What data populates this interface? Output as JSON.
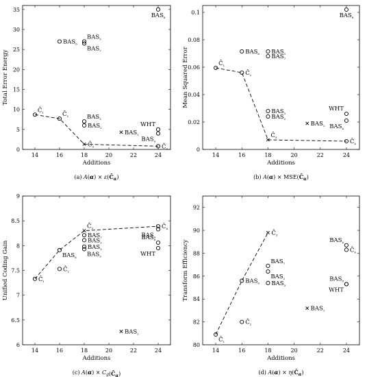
{
  "chart_data": [
    {
      "type": "scatter",
      "panel": "a",
      "xlabel": "Additions",
      "ylabel": "Total Error Energy",
      "caption": "(a) A(α) × ε(Ĉ_α)",
      "xlim": [
        13,
        25
      ],
      "ylim": [
        0,
        36
      ],
      "xticks": [
        14,
        16,
        18,
        20,
        22,
        24
      ],
      "yticks": [
        0,
        5,
        10,
        15,
        20,
        25,
        30,
        35
      ],
      "tick_labels_x": [
        "14",
        "16",
        "18",
        "20",
        "22",
        "24"
      ],
      "tick_labels_y": [
        "0",
        "5",
        "10",
        "15",
        "20",
        "25",
        "30",
        "35"
      ],
      "points": [
        {
          "label": "Ĉ₁",
          "x": 14,
          "y": 8.7,
          "marker": "o",
          "pos": "ne"
        },
        {
          "label": "Ĉ₂",
          "x": 16,
          "y": 7.7,
          "marker": "o",
          "pos": "ne"
        },
        {
          "label": "Ĉ₃",
          "x": 18,
          "y": 1.3,
          "marker": "x",
          "pos": "e"
        },
        {
          "label": "Ĉ₄",
          "x": 24,
          "y": 0.8,
          "marker": "o",
          "pos": "e"
        },
        {
          "label": "BAS₃",
          "x": 18,
          "y": 7.0,
          "marker": "o",
          "pos": "ne"
        },
        {
          "label": "BAS₂",
          "x": 18,
          "y": 6.0,
          "marker": "o",
          "pos": "e"
        },
        {
          "label": "BAS₁",
          "x": 21,
          "y": 4.3,
          "marker": "x",
          "pos": "e"
        },
        {
          "label": "WHT",
          "x": 24,
          "y": 5.0,
          "marker": "o",
          "pos": "nw"
        },
        {
          "label": "BAS₄",
          "x": 24,
          "y": 4.0,
          "marker": "o",
          "pos": "sw"
        },
        {
          "label": "BAS₆",
          "x": 16,
          "y": 27.0,
          "marker": "o",
          "pos": "e"
        },
        {
          "label": "BAS₅",
          "x": 18,
          "y": 27.0,
          "marker": "o",
          "pos": "ne"
        },
        {
          "label": "BAS₇",
          "x": 18,
          "y": 26.5,
          "marker": "o",
          "pos": "se"
        },
        {
          "label": "BAS₈",
          "x": 24,
          "y": 35.0,
          "marker": "o",
          "pos": "s"
        }
      ],
      "front": [
        [
          14,
          8.7
        ],
        [
          16,
          7.7
        ],
        [
          18,
          1.3
        ],
        [
          24,
          0.8
        ]
      ]
    },
    {
      "type": "scatter",
      "panel": "b",
      "xlabel": "Additions",
      "ylabel": "Mean Squared Error",
      "caption": "(b) A(α) × MSE(Ĉ_α)",
      "xlim": [
        13,
        25
      ],
      "ylim": [
        0,
        0.105
      ],
      "xticks": [
        14,
        16,
        18,
        20,
        22,
        24
      ],
      "yticks": [
        0,
        0.02,
        0.04,
        0.06,
        0.08,
        0.1
      ],
      "tick_labels_x": [
        "14",
        "16",
        "18",
        "20",
        "22",
        "24"
      ],
      "tick_labels_y": [
        "0",
        "0.02",
        "0.04",
        "0.06",
        "0.08",
        "0.1"
      ],
      "points": [
        {
          "label": "Ĉ₁",
          "x": 14,
          "y": 0.0595,
          "marker": "o",
          "pos": "ne"
        },
        {
          "label": "Ĉ₂",
          "x": 16,
          "y": 0.056,
          "marker": "o",
          "pos": "e"
        },
        {
          "label": "Ĉ₃",
          "x": 18,
          "y": 0.007,
          "marker": "x",
          "pos": "ne"
        },
        {
          "label": "Ĉ₄",
          "x": 24,
          "y": 0.006,
          "marker": "o",
          "pos": "e"
        },
        {
          "label": "BAS₃",
          "x": 18,
          "y": 0.028,
          "marker": "o",
          "pos": "e"
        },
        {
          "label": "BAS₂",
          "x": 18,
          "y": 0.024,
          "marker": "o",
          "pos": "e"
        },
        {
          "label": "BAS₁",
          "x": 21,
          "y": 0.019,
          "marker": "x",
          "pos": "e"
        },
        {
          "label": "WHT",
          "x": 24,
          "y": 0.026,
          "marker": "o",
          "pos": "nw"
        },
        {
          "label": "BAS₄",
          "x": 24,
          "y": 0.021,
          "marker": "o",
          "pos": "sw"
        },
        {
          "label": "BAS₆",
          "x": 16,
          "y": 0.0715,
          "marker": "o",
          "pos": "e"
        },
        {
          "label": "BAS₅",
          "x": 18,
          "y": 0.0715,
          "marker": "o",
          "pos": "e"
        },
        {
          "label": "BAS₇",
          "x": 18,
          "y": 0.068,
          "marker": "o",
          "pos": "e"
        },
        {
          "label": "BAS₈",
          "x": 24,
          "y": 0.102,
          "marker": "o",
          "pos": "s"
        }
      ],
      "front": [
        [
          14,
          0.0595
        ],
        [
          16,
          0.056
        ],
        [
          18,
          0.007
        ],
        [
          24,
          0.006
        ]
      ]
    },
    {
      "type": "scatter",
      "panel": "c",
      "xlabel": "Additions",
      "ylabel": "Unified Coding Gain",
      "caption": "(c) A(α) × C_g(Ĉ_α)",
      "xlim": [
        13,
        25
      ],
      "ylim": [
        6,
        9
      ],
      "xticks": [
        14,
        16,
        18,
        20,
        22,
        24
      ],
      "yticks": [
        6,
        6.5,
        7,
        7.5,
        8,
        8.5,
        9
      ],
      "tick_labels_x": [
        "14",
        "16",
        "18",
        "20",
        "22",
        "24"
      ],
      "tick_labels_y": [
        "6",
        "6.5",
        "7",
        "7.5",
        "8",
        "8.5",
        "9"
      ],
      "points": [
        {
          "label": "Ĉ₁",
          "x": 14,
          "y": 7.33,
          "marker": "o",
          "pos": "e"
        },
        {
          "label": "Ĉ₂",
          "x": 16,
          "y": 7.53,
          "marker": "o",
          "pos": "e"
        },
        {
          "label": "Ĉ₃",
          "x": 18,
          "y": 8.3,
          "marker": "x",
          "pos": "ne"
        },
        {
          "label": "Ĉ₄",
          "x": 24,
          "y": 8.39,
          "marker": "o",
          "pos": "e"
        },
        {
          "label": "BAS₇",
          "x": 18,
          "y": 8.21,
          "marker": "o",
          "pos": "e"
        },
        {
          "label": "BAS₂",
          "x": 18,
          "y": 8.11,
          "marker": "o",
          "pos": "e"
        },
        {
          "label": "BAS₃",
          "x": 18,
          "y": 7.98,
          "marker": "o",
          "pos": "e"
        },
        {
          "label": "BAS₅",
          "x": 18,
          "y": 7.93,
          "marker": "o",
          "pos": "se"
        },
        {
          "label": "BAS₆",
          "x": 16,
          "y": 7.91,
          "marker": "o",
          "pos": "se"
        },
        {
          "label": "BAS₄",
          "x": 24,
          "y": 8.33,
          "marker": "o",
          "pos": "sw"
        },
        {
          "label": "BAS₈",
          "x": 24,
          "y": 8.06,
          "marker": "o",
          "pos": "nw"
        },
        {
          "label": "WHT",
          "x": 24,
          "y": 7.95,
          "marker": "o",
          "pos": "sw"
        },
        {
          "label": "BAS₁",
          "x": 21,
          "y": 6.27,
          "marker": "x",
          "pos": "e"
        }
      ],
      "front": [
        [
          14,
          7.33
        ],
        [
          16,
          7.91
        ],
        [
          18,
          8.3
        ],
        [
          24,
          8.39
        ]
      ]
    },
    {
      "type": "scatter",
      "panel": "d",
      "xlabel": "Additions",
      "ylabel": "Transform Efficiency",
      "caption": "(d) A(α) × η(Ĉ_α)",
      "xlim": [
        13,
        25
      ],
      "ylim": [
        80,
        93
      ],
      "xticks": [
        14,
        16,
        18,
        20,
        22,
        24
      ],
      "yticks": [
        80,
        82,
        84,
        86,
        88,
        90,
        92
      ],
      "tick_labels_x": [
        "14",
        "16",
        "18",
        "20",
        "22",
        "24"
      ],
      "tick_labels_y": [
        "80",
        "82",
        "84",
        "86",
        "88",
        "90",
        "92"
      ],
      "points": [
        {
          "label": "Ĉ₁",
          "x": 14,
          "y": 80.9,
          "marker": "o",
          "pos": "se"
        },
        {
          "label": "Ĉ₂",
          "x": 16,
          "y": 82.0,
          "marker": "o",
          "pos": "e"
        },
        {
          "label": "Ĉ₃",
          "x": 18,
          "y": 89.8,
          "marker": "x",
          "pos": "e"
        },
        {
          "label": "BAS₆",
          "x": 16,
          "y": 85.6,
          "marker": "o",
          "pos": "e"
        },
        {
          "label": "BAS₇",
          "x": 18,
          "y": 86.9,
          "marker": "o",
          "pos": "ne"
        },
        {
          "label": "BAS₂",
          "x": 18,
          "y": 86.4,
          "marker": "o",
          "pos": "se"
        },
        {
          "label": "BAS₃",
          "x": 18,
          "y": 85.4,
          "marker": "o",
          "pos": "e"
        },
        {
          "label": "BAS₁",
          "x": 21,
          "y": 83.2,
          "marker": "x",
          "pos": "e"
        },
        {
          "label": "BAS₄",
          "x": 24,
          "y": 88.7,
          "marker": "o",
          "pos": "nw"
        },
        {
          "label": "Ĉ₄",
          "x": 24,
          "y": 88.3,
          "marker": "o",
          "pos": "e"
        },
        {
          "label": "BAS₈",
          "x": 24,
          "y": 85.3,
          "marker": "o",
          "pos": "nw"
        },
        {
          "label": "WHT",
          "x": 24,
          "y": 85.3,
          "marker": "o",
          "pos": "sw"
        }
      ],
      "front": [
        [
          14,
          80.9
        ],
        [
          16,
          85.6
        ],
        [
          18,
          89.8
        ]
      ]
    }
  ]
}
